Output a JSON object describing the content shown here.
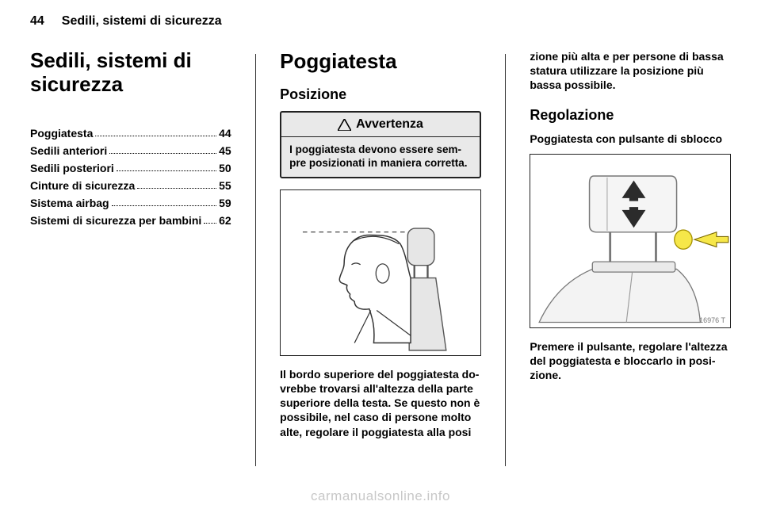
{
  "header": {
    "page_number": "44",
    "chapter": "Sedili, sistemi di sicurezza"
  },
  "col1": {
    "title": "Sedili, sistemi di sicurezza",
    "toc": [
      {
        "label": "Poggiatesta",
        "page": "44"
      },
      {
        "label": "Sedili anteriori",
        "page": "45"
      },
      {
        "label": "Sedili posteriori",
        "page": "50"
      },
      {
        "label": "Cinture di sicurezza",
        "page": "55"
      },
      {
        "label": "Sistema airbag",
        "page": "59"
      },
      {
        "label": "Sistemi di sicurezza per bambini",
        "page": "62"
      }
    ]
  },
  "col2": {
    "title": "Poggiatesta",
    "sub1": "Posizione",
    "warning_label": "Avvertenza",
    "warning_body": "I poggiatesta devono essere sem­pre posizionati in maniera corretta.",
    "body": "Il bordo superiore del poggiatesta do­vrebbe trovarsi all'altezza della parte superiore della testa. Se questo non è possibile, nel caso di persone molto alte, regolare il poggiatesta alla posi­"
  },
  "col3": {
    "cont": "zione più alta e per persone di bassa statura utilizzare la posizione più bassa possibile.",
    "sub2": "Regolazione",
    "sub3": "Poggiatesta con pulsante di sblocco",
    "fig2_id": "16976 T",
    "body": "Premere il pulsante, regolare l'altezza del poggiatesta e bloccarlo in posi­zione."
  },
  "watermark": "carmanualsonline.info",
  "colors": {
    "arrow_fill": "#2b2b2b",
    "button_fill": "#f6e749",
    "button_stroke": "#a38f00",
    "pointer_arrow": "#f6e749"
  }
}
